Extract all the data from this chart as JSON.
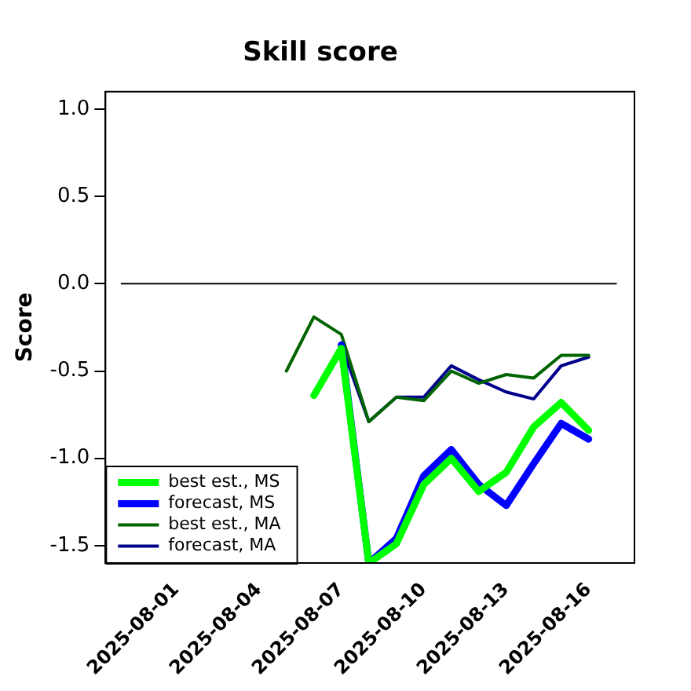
{
  "chart_data": {
    "type": "line",
    "title": "Skill score",
    "ylabel": "Score",
    "x": [
      "2025-08-05",
      "2025-08-06",
      "2025-08-07",
      "2025-08-08",
      "2025-08-09",
      "2025-08-10",
      "2025-08-11",
      "2025-08-12",
      "2025-08-13",
      "2025-08-14",
      "2025-08-15",
      "2025-08-16"
    ],
    "series": [
      {
        "name": "best est., MS",
        "color": "#00ff00",
        "values": [
          null,
          -0.64,
          -0.37,
          -1.6,
          -1.49,
          -1.15,
          -1.0,
          -1.19,
          -1.08,
          -0.82,
          -0.68,
          -0.84
        ]
      },
      {
        "name": "forecast, MS",
        "color": "#0000ff",
        "values": [
          null,
          null,
          -0.35,
          -1.6,
          -1.46,
          -1.1,
          -0.95,
          -1.15,
          -1.27,
          -1.03,
          -0.8,
          -0.89
        ]
      },
      {
        "name": "best est., MA",
        "color": "#006400",
        "values": [
          -0.5,
          -0.19,
          -0.29,
          -0.79,
          -0.65,
          -0.67,
          -0.5,
          -0.57,
          -0.52,
          -0.54,
          -0.41,
          -0.41
        ]
      },
      {
        "name": "forecast, MA",
        "color": "#00008b",
        "values": [
          null,
          null,
          -0.35,
          -0.79,
          -0.65,
          -0.65,
          -0.47,
          -0.55,
          -0.62,
          -0.66,
          -0.47,
          -0.42
        ]
      },
      {
        "color": "#000000",
        "x": [
          "2025-07-30",
          "2025-08-17"
        ],
        "values": [
          0,
          0
        ]
      }
    ],
    "xlim": [
      "2025-07-29T10:00",
      "2025-08-17T16:00"
    ],
    "xticks": [
      "2025-08-01",
      "2025-08-04",
      "2025-08-07",
      "2025-08-10",
      "2025-08-13",
      "2025-08-16"
    ],
    "ylim": [
      -1.6,
      1.1
    ],
    "yticks": [
      -1.5,
      {
        "value": -1,
        "label": "-1.0"
      },
      -0.5,
      {
        "value": 0,
        "label": "0.0"
      },
      0.5,
      {
        "value": 1,
        "label": "1.0"
      }
    ],
    "grid": false,
    "legend": "bottom left",
    "marker": "none",
    "line_style": "solid"
  }
}
